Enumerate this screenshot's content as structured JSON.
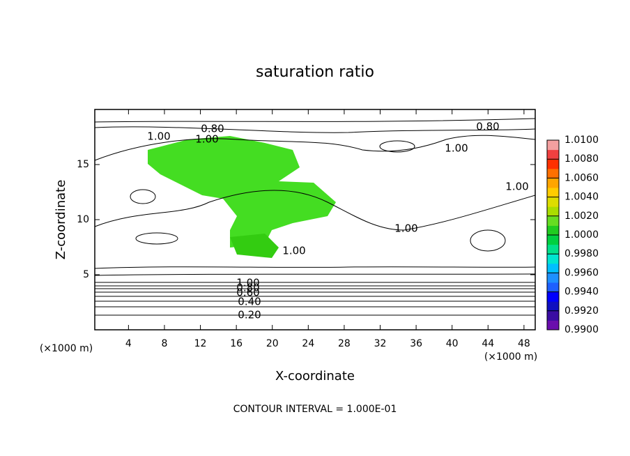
{
  "chart_data": {
    "type": "contour",
    "title": "saturation ratio",
    "x_label": "X-coordinate",
    "y_label": "Z-coordinate",
    "x_unit_label": "(×1000 m)",
    "x_unit_label_right": "(×1000 m)",
    "annotation": "CONTOUR INTERVAL = 1.000E-01",
    "xlim": [
      0.25,
      49.25
    ],
    "xticks": [
      4,
      8,
      12,
      16,
      20,
      24,
      28,
      32,
      36,
      40,
      44,
      48
    ],
    "ylim": [
      0,
      20
    ],
    "yticks": [
      5,
      10,
      15
    ],
    "grid": false,
    "contour_labels": [
      {
        "value": 1.0,
        "label": "1.00"
      },
      {
        "value": 0.8,
        "label": "0.80"
      },
      {
        "value": 1.0,
        "label": "1.00"
      },
      {
        "value": 0.8,
        "label": "0.80"
      },
      {
        "value": 1.0,
        "label": "1.00"
      },
      {
        "value": 1.0,
        "label": "1.00"
      },
      {
        "value": 1.0,
        "label": "1.00"
      },
      {
        "value": 1.0,
        "label": "1.00"
      },
      {
        "value": 1.0,
        "label": "1.00"
      },
      {
        "value": 0.8,
        "label": "0.80"
      },
      {
        "value": 0.6,
        "label": "0.60"
      },
      {
        "value": 0.4,
        "label": "0.40"
      },
      {
        "value": 0.2,
        "label": "0.20"
      }
    ],
    "colorbar": {
      "lim": [
        0.99,
        1.01
      ],
      "ticks": [
        {
          "value": 0.99,
          "label": "0.9900"
        },
        {
          "value": 0.992,
          "label": "0.9920"
        },
        {
          "value": 0.994,
          "label": "0.9940"
        },
        {
          "value": 0.996,
          "label": "0.9960"
        },
        {
          "value": 0.998,
          "label": "0.9980"
        },
        {
          "value": 1.0,
          "label": "1.0000"
        },
        {
          "value": 1.002,
          "label": "1.0020"
        },
        {
          "value": 1.004,
          "label": "1.0040"
        },
        {
          "value": 1.006,
          "label": "1.0060"
        },
        {
          "value": 1.008,
          "label": "1.0080"
        },
        {
          "value": 1.01,
          "label": "1.0100"
        }
      ],
      "colors": [
        "#6a0dad",
        "#3a0ca3",
        "#1010c0",
        "#0000ff",
        "#1e60ff",
        "#1e90ff",
        "#00bfff",
        "#00e5d0",
        "#00e08a",
        "#00d040",
        "#20cc20",
        "#66dd22",
        "#aadd00",
        "#dddd00",
        "#ffcc00",
        "#ffa500",
        "#ff7000",
        "#ff3000",
        "#f04040",
        "#f4a0a0"
      ]
    }
  }
}
